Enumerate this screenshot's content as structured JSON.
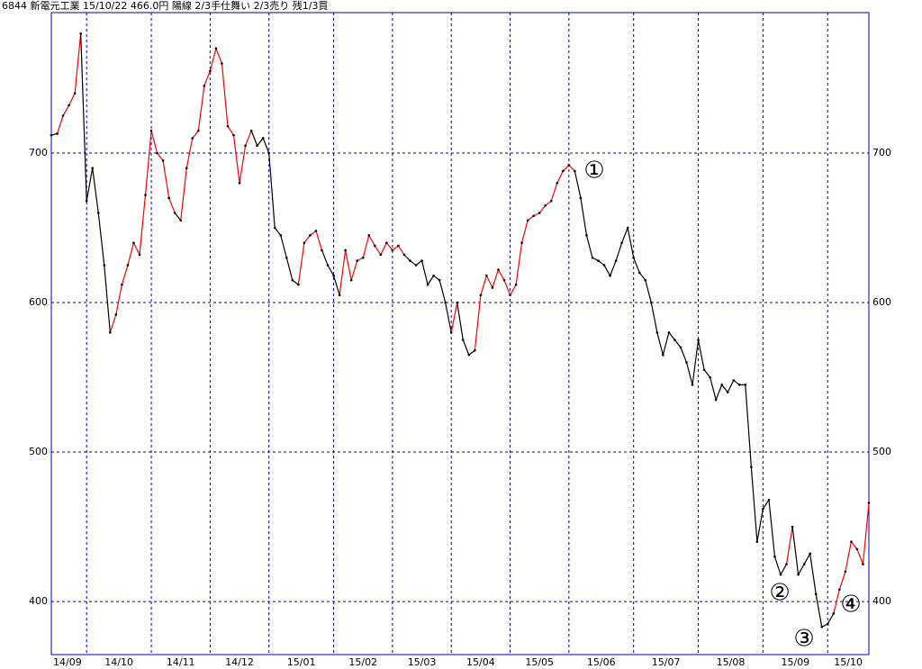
{
  "chart_data": {
    "type": "line",
    "title": "6844 新電元工業 15/10/22 466.0円 陽線 2/3手仕舞い 2/3売り 残1/3買",
    "series": [
      {
        "values": [
          712,
          713,
          725,
          732,
          740,
          780,
          668,
          690,
          660,
          625,
          580,
          592,
          612,
          625,
          640,
          632,
          672,
          715,
          700,
          695,
          670,
          660,
          655,
          690,
          710,
          715,
          745,
          755,
          770,
          760,
          718,
          712,
          680,
          705,
          715,
          705,
          710,
          700,
          650,
          645,
          630,
          615,
          612,
          640,
          645,
          648,
          635,
          625,
          618,
          605,
          635,
          615,
          628,
          630,
          645,
          638,
          632,
          640,
          635,
          638,
          632,
          628,
          625,
          628,
          612,
          618,
          615,
          600,
          580,
          600,
          575,
          565,
          568,
          605,
          618,
          610,
          622,
          615,
          605,
          612,
          640,
          655,
          658,
          660,
          665,
          668,
          680,
          688,
          692,
          688,
          670,
          645,
          630,
          628,
          625,
          618,
          628,
          640,
          650,
          630,
          620,
          615,
          600,
          580,
          565,
          580,
          575,
          570,
          560,
          545,
          575,
          555,
          550,
          535,
          545,
          540,
          548,
          545,
          545,
          490,
          440,
          462,
          468,
          430,
          418,
          425,
          450,
          418,
          425,
          432,
          405,
          383,
          385,
          392,
          408,
          420,
          440,
          435,
          425,
          466
        ],
        "colors": [
          "black",
          "black",
          "red",
          "red",
          "red",
          "red",
          "black",
          "black",
          "black",
          "black",
          "black",
          "red",
          "red",
          "red",
          "red",
          "red",
          "red",
          "red",
          "red",
          "red",
          "red",
          "red",
          "black",
          "red",
          "red",
          "red",
          "red",
          "red",
          "red",
          "red",
          "red",
          "red",
          "red",
          "red",
          "red",
          "black",
          "black",
          "black",
          "black",
          "black",
          "black",
          "black",
          "black",
          "red",
          "red",
          "red",
          "red",
          "black",
          "black",
          "black",
          "red",
          "red",
          "red",
          "red",
          "red",
          "red",
          "red",
          "red",
          "red",
          "red",
          "red",
          "black",
          "black",
          "black",
          "black",
          "black",
          "black",
          "black",
          "black",
          "red",
          "black",
          "black",
          "black",
          "red",
          "red",
          "red",
          "red",
          "red",
          "red",
          "red",
          "red",
          "red",
          "red",
          "red",
          "red",
          "red",
          "red",
          "red",
          "red",
          "red",
          "black",
          "black",
          "black",
          "black",
          "black",
          "black",
          "black",
          "black",
          "black",
          "black",
          "black",
          "black",
          "black",
          "black",
          "black",
          "black",
          "black",
          "black",
          "black",
          "black",
          "black",
          "black",
          "black",
          "black",
          "black",
          "black",
          "black",
          "black",
          "black",
          "black",
          "black",
          "black",
          "black",
          "black",
          "black",
          "black",
          "red",
          "black",
          "black",
          "black",
          "black",
          "black",
          "black",
          "black",
          "red",
          "red",
          "red",
          "red",
          "red",
          "red"
        ]
      }
    ],
    "xlim": [
      0,
      139
    ],
    "xticks": [
      {
        "value": 0,
        "label": "14/09"
      },
      {
        "value": 6,
        "label": "14/10"
      },
      {
        "value": 17,
        "label": "14/11"
      },
      {
        "value": 27,
        "label": "14/12"
      },
      {
        "value": 37,
        "label": "15/01"
      },
      {
        "value": 48,
        "label": "15/02"
      },
      {
        "value": 58,
        "label": "15/03"
      },
      {
        "value": 68,
        "label": "15/04"
      },
      {
        "value": 78,
        "label": "15/05"
      },
      {
        "value": 88,
        "label": "15/06"
      },
      {
        "value": 99,
        "label": "15/07"
      },
      {
        "value": 110,
        "label": "15/08"
      },
      {
        "value": 121,
        "label": "15/09"
      },
      {
        "value": 132,
        "label": "15/10"
      }
    ],
    "ylim": [
      364.5,
      794
    ],
    "yticks": [
      400,
      500,
      600,
      700
    ],
    "grid": true,
    "grid_color": "#0000aa",
    "annotations": [
      "①",
      "②",
      "③",
      "④"
    ],
    "annotation_color": "#3344dd"
  }
}
